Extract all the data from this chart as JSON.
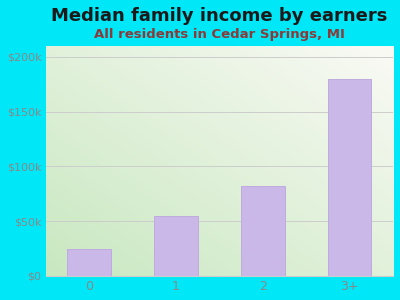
{
  "title": "Median family income by earners",
  "subtitle": "All residents in Cedar Springs, MI",
  "categories": [
    "0",
    "1",
    "2",
    "3+"
  ],
  "values": [
    25000,
    55000,
    82000,
    180000
  ],
  "bar_color": "#c9b8e8",
  "bar_edge_color": "#c0aadf",
  "ylim": [
    0,
    210000
  ],
  "yticks": [
    0,
    50000,
    100000,
    150000,
    200000
  ],
  "ytick_labels": [
    "$0",
    "$50k",
    "$100k",
    "$150k",
    "$200k"
  ],
  "title_fontsize": 13,
  "subtitle_fontsize": 9.5,
  "title_color": "#1a1a1a",
  "subtitle_color": "#8B3a3a",
  "tick_color": "#888888",
  "bg_outer": "#00e8f8",
  "bg_plot_topleft": "#c8e8c0",
  "bg_plot_bottomright": "#f5f5f0",
  "grid_color": "#cccccc",
  "bar_width": 0.5
}
